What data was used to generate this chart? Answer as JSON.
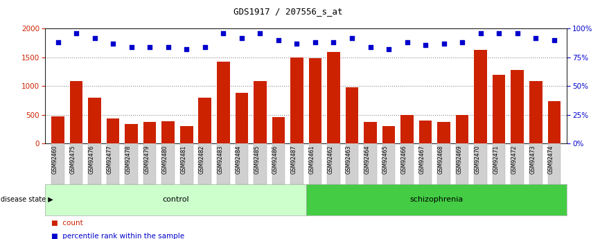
{
  "title": "GDS1917 / 207556_s_at",
  "samples": [
    "GSM92460",
    "GSM92475",
    "GSM92476",
    "GSM92477",
    "GSM92478",
    "GSM92479",
    "GSM92480",
    "GSM92481",
    "GSM92482",
    "GSM92483",
    "GSM92484",
    "GSM92485",
    "GSM92486",
    "GSM92487",
    "GSM92461",
    "GSM92462",
    "GSM92463",
    "GSM92464",
    "GSM92465",
    "GSM92466",
    "GSM92467",
    "GSM92468",
    "GSM92469",
    "GSM92470",
    "GSM92471",
    "GSM92472",
    "GSM92473",
    "GSM92474"
  ],
  "counts": [
    470,
    1090,
    800,
    440,
    340,
    380,
    390,
    300,
    800,
    1430,
    880,
    1090,
    460,
    1500,
    1490,
    1600,
    980,
    380,
    300,
    490,
    400,
    380,
    500,
    1630,
    1200,
    1280,
    1090,
    740
  ],
  "percentiles": [
    88,
    96,
    92,
    87,
    84,
    84,
    84,
    82,
    84,
    96,
    92,
    96,
    90,
    87,
    88,
    88,
    92,
    84,
    82,
    88,
    86,
    87,
    88,
    96,
    96,
    96,
    92,
    90
  ],
  "groups": [
    "control",
    "control",
    "control",
    "control",
    "control",
    "control",
    "control",
    "control",
    "control",
    "control",
    "control",
    "control",
    "control",
    "control",
    "schizophrenia",
    "schizophrenia",
    "schizophrenia",
    "schizophrenia",
    "schizophrenia",
    "schizophrenia",
    "schizophrenia",
    "schizophrenia",
    "schizophrenia",
    "schizophrenia",
    "schizophrenia",
    "schizophrenia",
    "schizophrenia",
    "schizophrenia"
  ],
  "bar_color": "#cc2200",
  "dot_color": "#0000cc",
  "ylim_left": [
    0,
    2000
  ],
  "ylim_right": [
    0,
    100
  ],
  "yticks_left": [
    0,
    500,
    1000,
    1500,
    2000
  ],
  "yticks_right": [
    0,
    25,
    50,
    75,
    100
  ],
  "control_color": "#ccffcc",
  "schizophrenia_color": "#44cc44",
  "grid_color": "#888888",
  "legend_count_label": "count",
  "legend_pct_label": "percentile rank within the sample",
  "disease_state_label": "disease state"
}
